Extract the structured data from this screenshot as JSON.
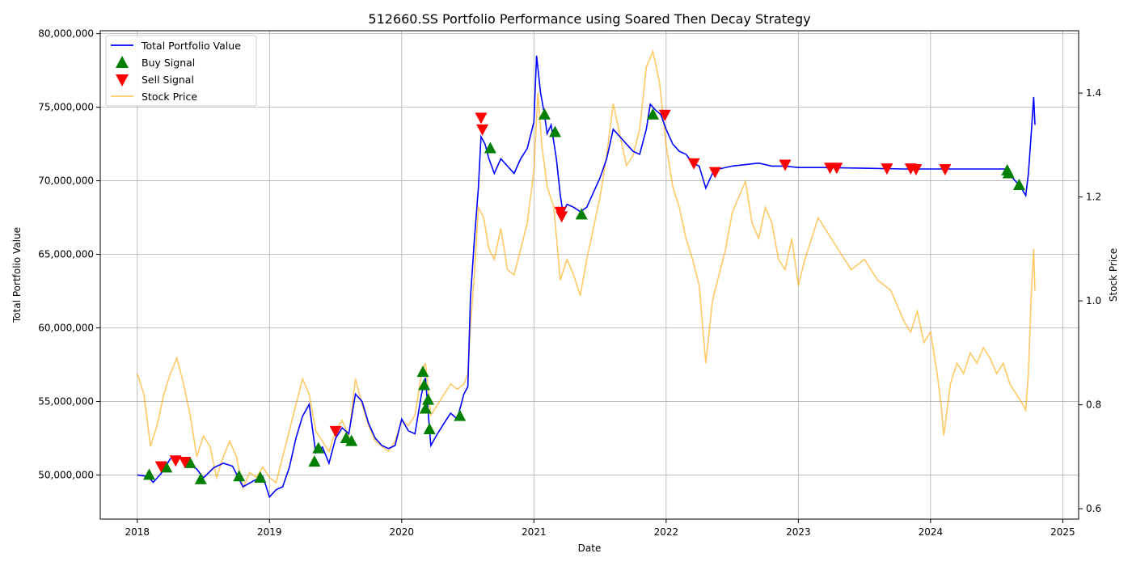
{
  "chart_data": {
    "type": "line",
    "title": "512660.SS Portfolio Performance using Soared Then Decay Strategy",
    "xlabel": "Date",
    "ylabel_left": "Total Portfolio Value",
    "ylabel_right": "Stock Price",
    "x_ticks": [
      "2018",
      "2019",
      "2020",
      "2021",
      "2022",
      "2023",
      "2024",
      "2025"
    ],
    "x_range": [
      2017.72,
      2025.12
    ],
    "y_left_range": [
      47000000,
      80200000
    ],
    "y_left_ticks": [
      "50,000,000",
      "55,000,000",
      "60,000,000",
      "65,000,000",
      "70,000,000",
      "75,000,000",
      "80,000,000"
    ],
    "y_left_tick_values": [
      50000000,
      55000000,
      60000000,
      65000000,
      70000000,
      75000000,
      80000000
    ],
    "y_right_range": [
      0.58,
      1.52
    ],
    "y_right_ticks": [
      "0.6",
      "0.8",
      "1.0",
      "1.2",
      "1.4"
    ],
    "y_right_tick_values": [
      0.6,
      0.8,
      1.0,
      1.2,
      1.4
    ],
    "grid": true,
    "legend_position": "top-left",
    "legend": [
      "Total Portfolio Value",
      "Buy Signal",
      "Sell Signal",
      "Stock Price"
    ],
    "colors": {
      "portfolio": "#0000ff",
      "buy": "#008000",
      "sell": "#ff0000",
      "price": "#ffa500",
      "grid": "#b0b0b0"
    },
    "portfolio_value": [
      [
        2018.0,
        50000000
      ],
      [
        2018.08,
        49900000
      ],
      [
        2018.12,
        49500000
      ],
      [
        2018.18,
        50100000
      ],
      [
        2018.25,
        51100000
      ],
      [
        2018.3,
        51300000
      ],
      [
        2018.38,
        50800000
      ],
      [
        2018.45,
        50400000
      ],
      [
        2018.5,
        49800000
      ],
      [
        2018.58,
        50500000
      ],
      [
        2018.65,
        50800000
      ],
      [
        2018.72,
        50600000
      ],
      [
        2018.8,
        49200000
      ],
      [
        2018.88,
        49600000
      ],
      [
        2018.95,
        49900000
      ],
      [
        2019.0,
        48500000
      ],
      [
        2019.05,
        49000000
      ],
      [
        2019.1,
        49200000
      ],
      [
        2019.15,
        50500000
      ],
      [
        2019.2,
        52500000
      ],
      [
        2019.25,
        54000000
      ],
      [
        2019.3,
        54800000
      ],
      [
        2019.35,
        51500000
      ],
      [
        2019.4,
        51900000
      ],
      [
        2019.45,
        50800000
      ],
      [
        2019.5,
        52500000
      ],
      [
        2019.55,
        53200000
      ],
      [
        2019.6,
        52800000
      ],
      [
        2019.65,
        55500000
      ],
      [
        2019.7,
        55000000
      ],
      [
        2019.75,
        53500000
      ],
      [
        2019.8,
        52500000
      ],
      [
        2019.85,
        52000000
      ],
      [
        2019.9,
        51800000
      ],
      [
        2019.95,
        52000000
      ],
      [
        2020.0,
        53800000
      ],
      [
        2020.05,
        53000000
      ],
      [
        2020.1,
        52800000
      ],
      [
        2020.15,
        55500000
      ],
      [
        2020.18,
        56600000
      ],
      [
        2020.22,
        52000000
      ],
      [
        2020.27,
        52800000
      ],
      [
        2020.32,
        53500000
      ],
      [
        2020.37,
        54200000
      ],
      [
        2020.42,
        53800000
      ],
      [
        2020.47,
        55500000
      ],
      [
        2020.5,
        56000000
      ],
      [
        2020.52,
        62000000
      ],
      [
        2020.55,
        66000000
      ],
      [
        2020.58,
        69500000
      ],
      [
        2020.6,
        73000000
      ],
      [
        2020.63,
        72500000
      ],
      [
        2020.66,
        71500000
      ],
      [
        2020.7,
        70500000
      ],
      [
        2020.75,
        71500000
      ],
      [
        2020.8,
        71000000
      ],
      [
        2020.85,
        70500000
      ],
      [
        2020.9,
        71500000
      ],
      [
        2020.95,
        72200000
      ],
      [
        2021.0,
        74000000
      ],
      [
        2021.02,
        78500000
      ],
      [
        2021.05,
        76000000
      ],
      [
        2021.08,
        74500000
      ],
      [
        2021.1,
        73200000
      ],
      [
        2021.13,
        73800000
      ],
      [
        2021.17,
        71500000
      ],
      [
        2021.2,
        69000000
      ],
      [
        2021.22,
        67800000
      ],
      [
        2021.25,
        68400000
      ],
      [
        2021.3,
        68200000
      ],
      [
        2021.35,
        67900000
      ],
      [
        2021.4,
        68200000
      ],
      [
        2021.45,
        69200000
      ],
      [
        2021.5,
        70200000
      ],
      [
        2021.55,
        71500000
      ],
      [
        2021.6,
        73500000
      ],
      [
        2021.65,
        73000000
      ],
      [
        2021.7,
        72500000
      ],
      [
        2021.75,
        72000000
      ],
      [
        2021.8,
        71800000
      ],
      [
        2021.85,
        73500000
      ],
      [
        2021.88,
        75200000
      ],
      [
        2021.92,
        74800000
      ],
      [
        2021.96,
        74500000
      ],
      [
        2022.0,
        73500000
      ],
      [
        2022.05,
        72500000
      ],
      [
        2022.1,
        72000000
      ],
      [
        2022.15,
        71800000
      ],
      [
        2022.2,
        71200000
      ],
      [
        2022.25,
        71000000
      ],
      [
        2022.3,
        69500000
      ],
      [
        2022.35,
        70500000
      ],
      [
        2022.4,
        70800000
      ],
      [
        2022.5,
        71000000
      ],
      [
        2022.6,
        71100000
      ],
      [
        2022.7,
        71200000
      ],
      [
        2022.8,
        71000000
      ],
      [
        2022.9,
        71000000
      ],
      [
        2023.0,
        70900000
      ],
      [
        2023.2,
        70900000
      ],
      [
        2023.5,
        70850000
      ],
      [
        2023.8,
        70800000
      ],
      [
        2024.0,
        70800000
      ],
      [
        2024.3,
        70800000
      ],
      [
        2024.58,
        70800000
      ],
      [
        2024.62,
        70200000
      ],
      [
        2024.68,
        69600000
      ],
      [
        2024.72,
        69000000
      ],
      [
        2024.74,
        70500000
      ],
      [
        2024.76,
        73000000
      ],
      [
        2024.78,
        75700000
      ],
      [
        2024.79,
        73800000
      ]
    ],
    "stock_price": [
      [
        2018.0,
        0.86
      ],
      [
        2018.05,
        0.82
      ],
      [
        2018.1,
        0.72
      ],
      [
        2018.15,
        0.76
      ],
      [
        2018.2,
        0.82
      ],
      [
        2018.25,
        0.86
      ],
      [
        2018.3,
        0.89
      ],
      [
        2018.35,
        0.84
      ],
      [
        2018.4,
        0.78
      ],
      [
        2018.45,
        0.7
      ],
      [
        2018.5,
        0.74
      ],
      [
        2018.55,
        0.72
      ],
      [
        2018.6,
        0.66
      ],
      [
        2018.65,
        0.7
      ],
      [
        2018.7,
        0.73
      ],
      [
        2018.75,
        0.7
      ],
      [
        2018.8,
        0.64
      ],
      [
        2018.85,
        0.67
      ],
      [
        2018.9,
        0.66
      ],
      [
        2018.95,
        0.68
      ],
      [
        2019.0,
        0.66
      ],
      [
        2019.05,
        0.65
      ],
      [
        2019.1,
        0.7
      ],
      [
        2019.15,
        0.75
      ],
      [
        2019.2,
        0.8
      ],
      [
        2019.25,
        0.85
      ],
      [
        2019.3,
        0.82
      ],
      [
        2019.35,
        0.75
      ],
      [
        2019.4,
        0.73
      ],
      [
        2019.45,
        0.71
      ],
      [
        2019.5,
        0.75
      ],
      [
        2019.55,
        0.77
      ],
      [
        2019.6,
        0.74
      ],
      [
        2019.65,
        0.85
      ],
      [
        2019.7,
        0.8
      ],
      [
        2019.75,
        0.76
      ],
      [
        2019.8,
        0.73
      ],
      [
        2019.85,
        0.72
      ],
      [
        2019.9,
        0.71
      ],
      [
        2019.95,
        0.73
      ],
      [
        2020.0,
        0.77
      ],
      [
        2020.05,
        0.76
      ],
      [
        2020.1,
        0.78
      ],
      [
        2020.15,
        0.86
      ],
      [
        2020.18,
        0.88
      ],
      [
        2020.22,
        0.78
      ],
      [
        2020.27,
        0.8
      ],
      [
        2020.32,
        0.82
      ],
      [
        2020.37,
        0.84
      ],
      [
        2020.42,
        0.83
      ],
      [
        2020.47,
        0.84
      ],
      [
        2020.5,
        0.86
      ],
      [
        2020.52,
        0.95
      ],
      [
        2020.55,
        1.05
      ],
      [
        2020.58,
        1.18
      ],
      [
        2020.62,
        1.16
      ],
      [
        2020.66,
        1.1
      ],
      [
        2020.7,
        1.08
      ],
      [
        2020.75,
        1.14
      ],
      [
        2020.8,
        1.06
      ],
      [
        2020.85,
        1.05
      ],
      [
        2020.9,
        1.1
      ],
      [
        2020.95,
        1.15
      ],
      [
        2021.0,
        1.25
      ],
      [
        2021.03,
        1.4
      ],
      [
        2021.06,
        1.3
      ],
      [
        2021.1,
        1.22
      ],
      [
        2021.15,
        1.18
      ],
      [
        2021.2,
        1.04
      ],
      [
        2021.25,
        1.08
      ],
      [
        2021.3,
        1.05
      ],
      [
        2021.35,
        1.01
      ],
      [
        2021.4,
        1.08
      ],
      [
        2021.45,
        1.14
      ],
      [
        2021.5,
        1.2
      ],
      [
        2021.55,
        1.28
      ],
      [
        2021.6,
        1.38
      ],
      [
        2021.65,
        1.32
      ],
      [
        2021.7,
        1.26
      ],
      [
        2021.75,
        1.28
      ],
      [
        2021.8,
        1.33
      ],
      [
        2021.85,
        1.45
      ],
      [
        2021.9,
        1.48
      ],
      [
        2021.95,
        1.42
      ],
      [
        2022.0,
        1.3
      ],
      [
        2022.05,
        1.22
      ],
      [
        2022.1,
        1.18
      ],
      [
        2022.15,
        1.12
      ],
      [
        2022.2,
        1.08
      ],
      [
        2022.25,
        1.03
      ],
      [
        2022.3,
        0.88
      ],
      [
        2022.35,
        1.0
      ],
      [
        2022.4,
        1.05
      ],
      [
        2022.45,
        1.1
      ],
      [
        2022.5,
        1.17
      ],
      [
        2022.55,
        1.2
      ],
      [
        2022.6,
        1.23
      ],
      [
        2022.65,
        1.15
      ],
      [
        2022.7,
        1.12
      ],
      [
        2022.75,
        1.18
      ],
      [
        2022.8,
        1.15
      ],
      [
        2022.85,
        1.08
      ],
      [
        2022.9,
        1.06
      ],
      [
        2022.95,
        1.12
      ],
      [
        2023.0,
        1.03
      ],
      [
        2023.05,
        1.08
      ],
      [
        2023.1,
        1.12
      ],
      [
        2023.15,
        1.16
      ],
      [
        2023.2,
        1.14
      ],
      [
        2023.25,
        1.12
      ],
      [
        2023.3,
        1.1
      ],
      [
        2023.4,
        1.06
      ],
      [
        2023.5,
        1.08
      ],
      [
        2023.6,
        1.04
      ],
      [
        2023.7,
        1.02
      ],
      [
        2023.8,
        0.96
      ],
      [
        2023.85,
        0.94
      ],
      [
        2023.9,
        0.98
      ],
      [
        2023.95,
        0.92
      ],
      [
        2024.0,
        0.94
      ],
      [
        2024.05,
        0.86
      ],
      [
        2024.08,
        0.8
      ],
      [
        2024.1,
        0.74
      ],
      [
        2024.15,
        0.84
      ],
      [
        2024.2,
        0.88
      ],
      [
        2024.25,
        0.86
      ],
      [
        2024.3,
        0.9
      ],
      [
        2024.35,
        0.88
      ],
      [
        2024.4,
        0.91
      ],
      [
        2024.45,
        0.89
      ],
      [
        2024.5,
        0.86
      ],
      [
        2024.55,
        0.88
      ],
      [
        2024.6,
        0.84
      ],
      [
        2024.65,
        0.82
      ],
      [
        2024.7,
        0.8
      ],
      [
        2024.72,
        0.79
      ],
      [
        2024.74,
        0.86
      ],
      [
        2024.76,
        1.0
      ],
      [
        2024.78,
        1.1
      ],
      [
        2024.79,
        1.02
      ]
    ],
    "buy_signals": [
      [
        2018.09,
        50000000
      ],
      [
        2018.22,
        50500000
      ],
      [
        2018.4,
        50800000
      ],
      [
        2018.48,
        49700000
      ],
      [
        2018.77,
        49900000
      ],
      [
        2018.93,
        49800000
      ],
      [
        2019.34,
        50900000
      ],
      [
        2019.37,
        51800000
      ],
      [
        2019.58,
        52500000
      ],
      [
        2019.62,
        52300000
      ],
      [
        2020.16,
        57000000
      ],
      [
        2020.17,
        56100000
      ],
      [
        2020.18,
        54500000
      ],
      [
        2020.2,
        55100000
      ],
      [
        2020.21,
        53100000
      ],
      [
        2020.44,
        54000000
      ],
      [
        2020.67,
        72200000
      ],
      [
        2021.08,
        74500000
      ],
      [
        2021.16,
        73300000
      ],
      [
        2021.36,
        67700000
      ],
      [
        2021.9,
        74500000
      ],
      [
        2024.58,
        70700000
      ],
      [
        2024.59,
        70500000
      ],
      [
        2024.67,
        69700000
      ]
    ],
    "sell_signals": [
      [
        2018.18,
        50600000
      ],
      [
        2018.29,
        51000000
      ],
      [
        2018.36,
        50900000
      ],
      [
        2019.5,
        53000000
      ],
      [
        2020.6,
        74300000
      ],
      [
        2020.61,
        73500000
      ],
      [
        2021.2,
        67900000
      ],
      [
        2021.21,
        67600000
      ],
      [
        2021.99,
        74500000
      ],
      [
        2022.21,
        71200000
      ],
      [
        2022.37,
        70600000
      ],
      [
        2022.9,
        71100000
      ],
      [
        2023.24,
        70900000
      ],
      [
        2023.29,
        70900000
      ],
      [
        2023.67,
        70850000
      ],
      [
        2023.85,
        70850000
      ],
      [
        2023.89,
        70800000
      ],
      [
        2024.11,
        70800000
      ]
    ]
  }
}
